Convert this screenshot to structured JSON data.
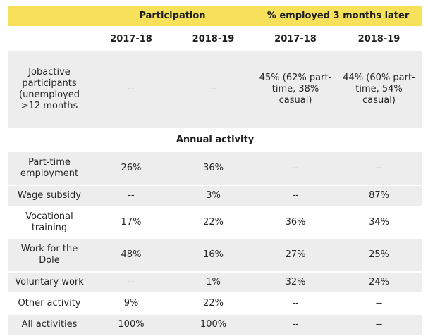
{
  "header": {
    "group1": "Participation",
    "group2": "% employed 3 months later",
    "years": [
      "2017-18",
      "2018-19",
      "2017-18",
      "2018-19"
    ]
  },
  "section_label": "Annual activity",
  "rows": [
    {
      "label": "Jobactive participants (unemployed >12 months",
      "values": [
        "--",
        "--",
        "45% (62% part-time, 38% casual)",
        "44% (60% part-time, 54% casual)"
      ]
    },
    {
      "label": "Part-time employment",
      "values": [
        "26%",
        "36%",
        "--",
        "--"
      ]
    },
    {
      "label": "Wage subsidy",
      "values": [
        "--",
        "3%",
        "--",
        "87%"
      ]
    },
    {
      "label": "Vocational training",
      "values": [
        "17%",
        "22%",
        "36%",
        "34%"
      ]
    },
    {
      "label": "Work for the Dole",
      "values": [
        "48%",
        "16%",
        "27%",
        "25%"
      ]
    },
    {
      "label": "Voluntary work",
      "values": [
        "--",
        "1%",
        "32%",
        "24%"
      ]
    },
    {
      "label": "Other activity",
      "values": [
        "9%",
        "22%",
        "--",
        "--"
      ]
    },
    {
      "label": "All activities",
      "values": [
        "100%",
        "100%",
        "--",
        "--"
      ]
    }
  ],
  "colors": {
    "header_fill": "#f7e15a",
    "row_fill": "#ededed"
  }
}
